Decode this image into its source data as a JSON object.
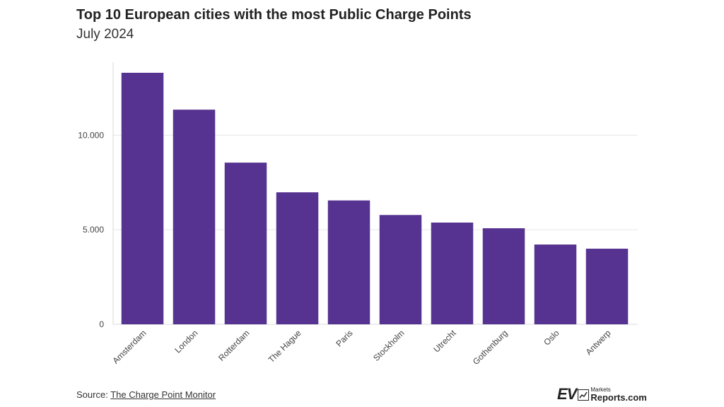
{
  "title": "Top 10 European cities with the most Public Charge Points",
  "subtitle": "July 2024",
  "source": {
    "label": "Source:",
    "link_text": "The Charge Point Monitor"
  },
  "logo": {
    "ev": "EV",
    "markets": "Markets",
    "reports": "Reports.com"
  },
  "chart_data": {
    "type": "bar",
    "title": "Top 10 European cities with the most Public Charge Points",
    "subtitle": "July 2024",
    "categories": [
      "Amsterdam",
      "London",
      "Rotterdam",
      "The Hague",
      "Paris",
      "Stockholm",
      "Utrecht",
      "Gothenburg",
      "Oslo",
      "Antwerp"
    ],
    "values": [
      13300,
      11350,
      8550,
      6980,
      6550,
      5780,
      5380,
      5080,
      4220,
      4000
    ],
    "ylim": [
      0,
      13300
    ],
    "yticks": [
      0,
      5000,
      10000
    ],
    "ytick_labels": [
      "0",
      "5.000",
      "10.000"
    ],
    "xlabel": "",
    "ylabel": "",
    "bar_color": "#573391",
    "grid": true,
    "legend": "none"
  }
}
